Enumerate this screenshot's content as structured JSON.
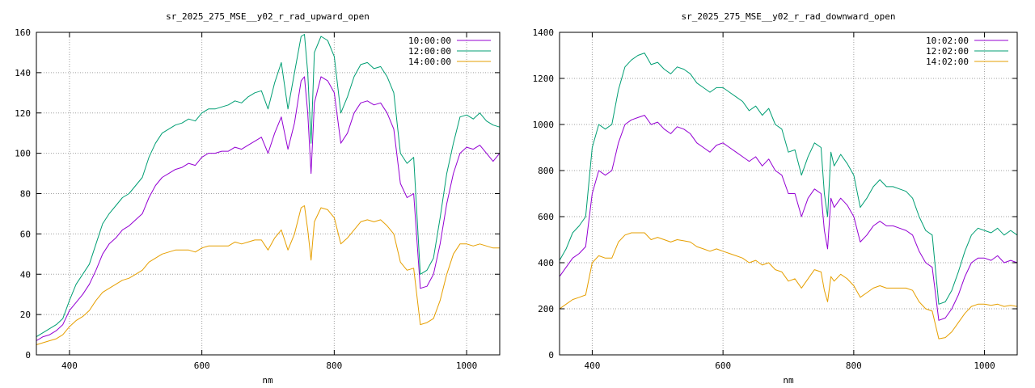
{
  "chart_data": [
    {
      "type": "line",
      "title": "sr_2025_275_MSE__y02_r_rad_upward_open",
      "xlabel": "nm",
      "ylabel": "",
      "xlim": [
        350,
        1050
      ],
      "ylim": [
        0,
        160
      ],
      "xticks": [
        400,
        600,
        800,
        1000
      ],
      "yticks": [
        0,
        20,
        40,
        60,
        80,
        100,
        120,
        140,
        160
      ],
      "grid": true,
      "legend_position": "top-right",
      "series": [
        {
          "name": "10:00:00",
          "color": "#9400d3",
          "x": [
            350,
            360,
            370,
            380,
            390,
            400,
            410,
            420,
            430,
            440,
            450,
            460,
            470,
            480,
            490,
            500,
            510,
            520,
            530,
            540,
            550,
            560,
            570,
            580,
            590,
            600,
            610,
            620,
            630,
            640,
            650,
            660,
            670,
            680,
            690,
            700,
            710,
            720,
            730,
            740,
            750,
            755,
            760,
            765,
            770,
            780,
            790,
            800,
            810,
            820,
            830,
            840,
            850,
            860,
            870,
            880,
            890,
            900,
            910,
            920,
            930,
            940,
            950,
            960,
            970,
            980,
            990,
            1000,
            1010,
            1020,
            1030,
            1040,
            1050
          ],
          "y": [
            7,
            9,
            10,
            12,
            15,
            22,
            26,
            30,
            35,
            42,
            50,
            55,
            58,
            62,
            64,
            67,
            70,
            78,
            84,
            88,
            90,
            92,
            93,
            95,
            94,
            98,
            100,
            100,
            101,
            101,
            103,
            102,
            104,
            106,
            108,
            100,
            110,
            118,
            102,
            115,
            136,
            138,
            120,
            90,
            125,
            138,
            136,
            130,
            105,
            110,
            120,
            125,
            126,
            124,
            125,
            120,
            112,
            85,
            78,
            80,
            33,
            34,
            40,
            55,
            75,
            90,
            100,
            103,
            102,
            104,
            100,
            96,
            100
          ]
        },
        {
          "name": "12:00:00",
          "color": "#009e73",
          "x": [
            350,
            360,
            370,
            380,
            390,
            400,
            410,
            420,
            430,
            440,
            450,
            460,
            470,
            480,
            490,
            500,
            510,
            520,
            530,
            540,
            550,
            560,
            570,
            580,
            590,
            600,
            610,
            620,
            630,
            640,
            650,
            660,
            670,
            680,
            690,
            700,
            710,
            720,
            730,
            740,
            750,
            755,
            760,
            765,
            770,
            780,
            790,
            800,
            810,
            820,
            830,
            840,
            850,
            860,
            870,
            880,
            890,
            900,
            910,
            920,
            930,
            940,
            950,
            960,
            970,
            980,
            990,
            1000,
            1010,
            1020,
            1030,
            1040,
            1050
          ],
          "y": [
            9,
            11,
            13,
            15,
            18,
            27,
            35,
            40,
            45,
            55,
            65,
            70,
            74,
            78,
            80,
            84,
            88,
            98,
            105,
            110,
            112,
            114,
            115,
            117,
            116,
            120,
            122,
            122,
            123,
            124,
            126,
            125,
            128,
            130,
            131,
            122,
            135,
            145,
            122,
            140,
            158,
            159,
            140,
            105,
            150,
            158,
            156,
            148,
            120,
            128,
            138,
            144,
            145,
            142,
            143,
            138,
            130,
            100,
            95,
            98,
            40,
            42,
            48,
            68,
            90,
            105,
            118,
            119,
            117,
            120,
            116,
            114,
            113
          ]
        },
        {
          "name": "14:00:00",
          "color": "#e69f00",
          "x": [
            350,
            360,
            370,
            380,
            390,
            400,
            410,
            420,
            430,
            440,
            450,
            460,
            470,
            480,
            490,
            500,
            510,
            520,
            530,
            540,
            550,
            560,
            570,
            580,
            590,
            600,
            610,
            620,
            630,
            640,
            650,
            660,
            670,
            680,
            690,
            700,
            710,
            720,
            730,
            740,
            750,
            755,
            760,
            765,
            770,
            780,
            790,
            800,
            810,
            820,
            830,
            840,
            850,
            860,
            870,
            880,
            890,
            900,
            910,
            920,
            930,
            940,
            950,
            960,
            970,
            980,
            990,
            1000,
            1010,
            1020,
            1030,
            1040,
            1050
          ],
          "y": [
            5,
            6,
            7,
            8,
            10,
            14,
            17,
            19,
            22,
            27,
            31,
            33,
            35,
            37,
            38,
            40,
            42,
            46,
            48,
            50,
            51,
            52,
            52,
            52,
            51,
            53,
            54,
            54,
            54,
            54,
            56,
            55,
            56,
            57,
            57,
            52,
            58,
            62,
            52,
            60,
            73,
            74,
            62,
            47,
            66,
            73,
            72,
            68,
            55,
            58,
            62,
            66,
            67,
            66,
            67,
            64,
            60,
            46,
            42,
            43,
            15,
            16,
            18,
            27,
            40,
            50,
            55,
            55,
            54,
            55,
            54,
            53,
            53
          ]
        }
      ]
    },
    {
      "type": "line",
      "title": "sr_2025_275_MSE__y02_r_rad_downward_open",
      "xlabel": "nm",
      "ylabel": "",
      "xlim": [
        350,
        1050
      ],
      "ylim": [
        0,
        1400
      ],
      "xticks": [
        400,
        600,
        800,
        1000
      ],
      "yticks": [
        0,
        200,
        400,
        600,
        800,
        1000,
        1200,
        1400
      ],
      "grid": true,
      "legend_position": "top-right",
      "series": [
        {
          "name": "10:02:00",
          "color": "#9400d3",
          "x": [
            350,
            360,
            370,
            380,
            390,
            400,
            410,
            420,
            430,
            440,
            450,
            460,
            470,
            480,
            490,
            500,
            510,
            520,
            530,
            540,
            550,
            560,
            570,
            580,
            590,
            600,
            610,
            620,
            630,
            640,
            650,
            660,
            670,
            680,
            690,
            700,
            710,
            720,
            730,
            740,
            750,
            755,
            760,
            765,
            770,
            780,
            790,
            800,
            810,
            820,
            830,
            840,
            850,
            860,
            870,
            880,
            890,
            900,
            910,
            920,
            930,
            940,
            950,
            960,
            970,
            980,
            990,
            1000,
            1010,
            1020,
            1030,
            1040,
            1050
          ],
          "y": [
            340,
            380,
            420,
            440,
            470,
            700,
            800,
            780,
            800,
            920,
            1000,
            1020,
            1030,
            1040,
            1000,
            1010,
            980,
            960,
            990,
            980,
            960,
            920,
            900,
            880,
            910,
            920,
            900,
            880,
            860,
            840,
            860,
            820,
            850,
            800,
            780,
            700,
            700,
            600,
            680,
            720,
            700,
            540,
            460,
            680,
            640,
            680,
            650,
            600,
            490,
            520,
            560,
            580,
            560,
            560,
            550,
            540,
            520,
            450,
            400,
            380,
            150,
            160,
            200,
            260,
            340,
            400,
            420,
            420,
            410,
            430,
            400,
            410,
            400
          ]
        },
        {
          "name": "12:02:00",
          "color": "#009e73",
          "x": [
            350,
            360,
            370,
            380,
            390,
            400,
            410,
            420,
            430,
            440,
            450,
            460,
            470,
            480,
            490,
            500,
            510,
            520,
            530,
            540,
            550,
            560,
            570,
            580,
            590,
            600,
            610,
            620,
            630,
            640,
            650,
            660,
            670,
            680,
            690,
            700,
            710,
            720,
            730,
            740,
            750,
            755,
            760,
            765,
            770,
            780,
            790,
            800,
            810,
            820,
            830,
            840,
            850,
            860,
            870,
            880,
            890,
            900,
            910,
            920,
            930,
            940,
            950,
            960,
            970,
            980,
            990,
            1000,
            1010,
            1020,
            1030,
            1040,
            1050
          ],
          "y": [
            410,
            460,
            530,
            560,
            600,
            900,
            1000,
            980,
            1000,
            1150,
            1250,
            1280,
            1300,
            1310,
            1260,
            1270,
            1240,
            1220,
            1250,
            1240,
            1220,
            1180,
            1160,
            1140,
            1160,
            1160,
            1140,
            1120,
            1100,
            1060,
            1080,
            1040,
            1070,
            1000,
            980,
            880,
            890,
            780,
            860,
            920,
            900,
            700,
            600,
            880,
            820,
            870,
            830,
            780,
            640,
            680,
            730,
            760,
            730,
            730,
            720,
            710,
            680,
            600,
            540,
            520,
            220,
            230,
            280,
            360,
            450,
            520,
            550,
            540,
            530,
            550,
            520,
            540,
            520
          ]
        },
        {
          "name": "14:02:00",
          "color": "#e69f00",
          "x": [
            350,
            360,
            370,
            380,
            390,
            400,
            410,
            420,
            430,
            440,
            450,
            460,
            470,
            480,
            490,
            500,
            510,
            520,
            530,
            540,
            550,
            560,
            570,
            580,
            590,
            600,
            610,
            620,
            630,
            640,
            650,
            660,
            670,
            680,
            690,
            700,
            710,
            720,
            730,
            740,
            750,
            755,
            760,
            765,
            770,
            780,
            790,
            800,
            810,
            820,
            830,
            840,
            850,
            860,
            870,
            880,
            890,
            900,
            910,
            920,
            930,
            940,
            950,
            960,
            970,
            980,
            990,
            1000,
            1010,
            1020,
            1030,
            1040,
            1050
          ],
          "y": [
            200,
            220,
            240,
            250,
            260,
            400,
            430,
            420,
            420,
            490,
            520,
            530,
            530,
            530,
            500,
            510,
            500,
            490,
            500,
            495,
            490,
            470,
            460,
            450,
            460,
            450,
            440,
            430,
            420,
            400,
            410,
            390,
            400,
            370,
            360,
            320,
            330,
            290,
            330,
            370,
            360,
            280,
            230,
            340,
            320,
            350,
            330,
            300,
            250,
            270,
            290,
            300,
            290,
            290,
            290,
            290,
            280,
            230,
            200,
            190,
            70,
            75,
            100,
            140,
            180,
            210,
            220,
            220,
            215,
            220,
            210,
            215,
            210
          ]
        }
      ]
    }
  ]
}
